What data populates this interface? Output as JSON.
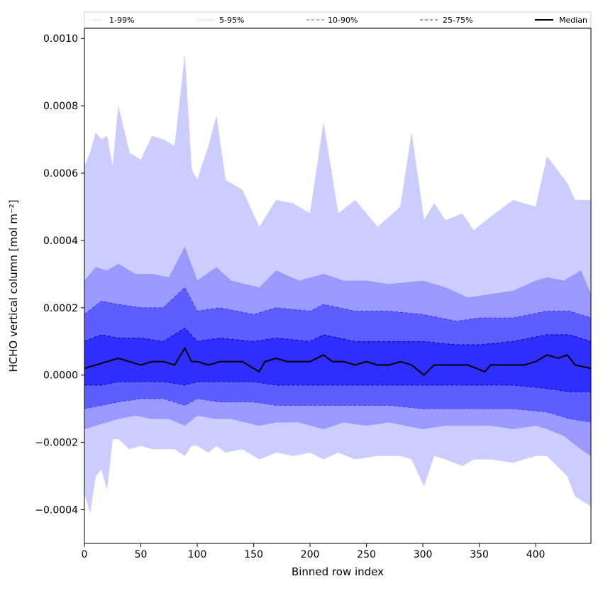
{
  "chart_data": {
    "type": "area",
    "title": "",
    "xlabel": "Binned row index",
    "ylabel": "HCHO vertical column [mol m⁻²]",
    "xlim": [
      0,
      449
    ],
    "ylim": [
      -0.0005,
      0.00103
    ],
    "xticks": [
      0,
      50,
      100,
      150,
      200,
      250,
      300,
      350,
      400
    ],
    "xtick_labels": [
      "0",
      "50",
      "100",
      "150",
      "200",
      "250",
      "300",
      "350",
      "400"
    ],
    "yticks": [
      -0.0004,
      -0.0002,
      0.0,
      0.0002,
      0.0004,
      0.0006,
      0.0008,
      0.001
    ],
    "ytick_labels": [
      "−0.0004",
      "−0.0002",
      "0.0000",
      "0.0002",
      "0.0004",
      "0.0006",
      "0.0008",
      "0.0010"
    ],
    "legend_position": "top, above plot (5 columns)",
    "series": [
      {
        "name": "1-99%",
        "style": "dotted",
        "color": "#c8c8ff",
        "x": [
          0,
          5,
          10,
          15,
          20,
          25,
          30,
          40,
          50,
          60,
          70,
          80,
          89,
          95,
          100,
          110,
          117,
          125,
          140,
          155,
          170,
          185,
          200,
          212,
          225,
          240,
          260,
          280,
          290,
          301,
          310,
          320,
          335,
          345,
          360,
          380,
          400,
          410,
          428,
          435,
          449
        ],
        "upper": [
          0.00062,
          0.00066,
          0.00072,
          0.0007,
          0.00071,
          0.00062,
          0.0008,
          0.00066,
          0.00064,
          0.00071,
          0.0007,
          0.00068,
          0.00095,
          0.00061,
          0.00058,
          0.00068,
          0.00077,
          0.00058,
          0.00055,
          0.00044,
          0.00052,
          0.00051,
          0.00048,
          0.00075,
          0.00048,
          0.00052,
          0.00044,
          0.0005,
          0.00072,
          0.00046,
          0.00051,
          0.00046,
          0.00048,
          0.00043,
          0.00047,
          0.00052,
          0.0005,
          0.00065,
          0.00057,
          0.00052,
          0.00052
        ],
        "lower": [
          -0.00035,
          -0.00041,
          -0.0003,
          -0.00028,
          -0.00034,
          -0.00019,
          -0.00019,
          -0.00022,
          -0.00021,
          -0.00022,
          -0.00022,
          -0.00022,
          -0.00024,
          -0.00021,
          -0.00021,
          -0.00023,
          -0.00021,
          -0.00023,
          -0.00022,
          -0.00025,
          -0.00023,
          -0.00024,
          -0.00023,
          -0.00025,
          -0.00023,
          -0.00025,
          -0.00024,
          -0.00024,
          -0.00025,
          -0.00033,
          -0.00024,
          -0.00025,
          -0.00027,
          -0.00025,
          -0.00025,
          -0.00026,
          -0.00024,
          -0.00024,
          -0.0003,
          -0.00036,
          -0.00039
        ]
      },
      {
        "name": "5-95%",
        "style": "dotted",
        "color": "#9999ff",
        "x": [
          0,
          10,
          20,
          30,
          45,
          60,
          75,
          89,
          100,
          117,
          130,
          155,
          170,
          190,
          212,
          230,
          250,
          270,
          300,
          320,
          340,
          360,
          380,
          400,
          410,
          425,
          440,
          449
        ],
        "upper": [
          0.00028,
          0.00032,
          0.00031,
          0.00033,
          0.0003,
          0.0003,
          0.00029,
          0.00038,
          0.00028,
          0.00032,
          0.00028,
          0.00026,
          0.00031,
          0.00028,
          0.0003,
          0.00028,
          0.00028,
          0.00027,
          0.00028,
          0.00026,
          0.00023,
          0.00024,
          0.00025,
          0.00028,
          0.00029,
          0.00028,
          0.00031,
          0.00024
        ],
        "lower": [
          -0.00016,
          -0.00015,
          -0.00014,
          -0.00013,
          -0.00012,
          -0.00013,
          -0.00013,
          -0.00015,
          -0.00012,
          -0.00013,
          -0.00013,
          -0.00015,
          -0.00014,
          -0.00014,
          -0.00016,
          -0.00014,
          -0.00015,
          -0.00014,
          -0.00016,
          -0.00015,
          -0.00015,
          -0.00015,
          -0.00016,
          -0.00015,
          -0.00016,
          -0.00018,
          -0.00022,
          -0.00024
        ]
      },
      {
        "name": "10-90%",
        "style": "dashed",
        "color": "#6666ff",
        "x": [
          0,
          15,
          30,
          50,
          70,
          89,
          100,
          120,
          150,
          170,
          200,
          212,
          240,
          270,
          300,
          330,
          350,
          380,
          410,
          430,
          449
        ],
        "upper": [
          0.00018,
          0.00022,
          0.00021,
          0.0002,
          0.0002,
          0.00026,
          0.00019,
          0.0002,
          0.00018,
          0.0002,
          0.00019,
          0.00021,
          0.00019,
          0.00019,
          0.00018,
          0.00016,
          0.00017,
          0.00017,
          0.00019,
          0.00019,
          0.00017
        ],
        "lower": [
          -0.0001,
          -9e-05,
          -8e-05,
          -7e-05,
          -7e-05,
          -9e-05,
          -7e-05,
          -8e-05,
          -8e-05,
          -9e-05,
          -9e-05,
          -9e-05,
          -9e-05,
          -9e-05,
          -0.0001,
          -0.0001,
          -0.0001,
          -0.0001,
          -0.00011,
          -0.00013,
          -0.00014
        ]
      },
      {
        "name": "25-75%",
        "style": "dashed",
        "color": "#3333ff",
        "x": [
          0,
          15,
          30,
          50,
          70,
          89,
          100,
          120,
          150,
          170,
          200,
          212,
          240,
          270,
          300,
          330,
          350,
          380,
          410,
          430,
          449
        ],
        "upper": [
          0.0001,
          0.00012,
          0.00011,
          0.00011,
          0.0001,
          0.00014,
          0.0001,
          0.00011,
          0.0001,
          0.00011,
          0.0001,
          0.00012,
          0.0001,
          0.0001,
          0.0001,
          9e-05,
          9e-05,
          0.0001,
          0.00012,
          0.00012,
          0.0001
        ],
        "lower": [
          -3e-05,
          -3e-05,
          -2e-05,
          -2e-05,
          -2e-05,
          -3e-05,
          -2e-05,
          -2e-05,
          -2e-05,
          -3e-05,
          -3e-05,
          -3e-05,
          -3e-05,
          -3e-05,
          -3e-05,
          -3e-05,
          -3e-05,
          -3e-05,
          -4e-05,
          -5e-05,
          -5e-05
        ]
      },
      {
        "name": "Median",
        "style": "solid",
        "color": "#000000",
        "x": [
          0,
          10,
          20,
          30,
          40,
          50,
          60,
          70,
          80,
          89,
          95,
          100,
          110,
          120,
          130,
          140,
          155,
          160,
          170,
          180,
          190,
          200,
          212,
          220,
          230,
          240,
          250,
          260,
          270,
          280,
          290,
          301,
          310,
          320,
          330,
          340,
          355,
          360,
          370,
          380,
          390,
          400,
          410,
          420,
          428,
          435,
          449
        ],
        "values": [
          2e-05,
          3e-05,
          4e-05,
          5e-05,
          4e-05,
          3e-05,
          4e-05,
          4e-05,
          3e-05,
          8e-05,
          4e-05,
          4e-05,
          3e-05,
          4e-05,
          4e-05,
          4e-05,
          1e-05,
          4e-05,
          5e-05,
          4e-05,
          4e-05,
          4e-05,
          6e-05,
          4e-05,
          4e-05,
          3e-05,
          4e-05,
          3e-05,
          3e-05,
          4e-05,
          3e-05,
          0.0,
          3e-05,
          3e-05,
          3e-05,
          3e-05,
          1e-05,
          3e-05,
          3e-05,
          3e-05,
          3e-05,
          4e-05,
          6e-05,
          5e-05,
          6e-05,
          3e-05,
          2e-05
        ]
      }
    ]
  }
}
